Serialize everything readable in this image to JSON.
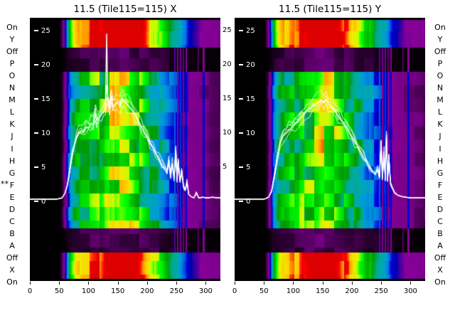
{
  "figure": {
    "background": "#ffffff",
    "row_marker": "**",
    "row_marker_row": "F",
    "trace_color": "#ffffff"
  },
  "chart_data": {
    "type": "heatmap",
    "colormap": "nipy_spectral",
    "x_range": [
      0,
      325
    ],
    "value_range": [
      0,
      25
    ],
    "x_ticks": [
      0,
      50,
      100,
      150,
      200,
      250,
      300
    ],
    "value_ticks": [
      25,
      20,
      15,
      10,
      5,
      0
    ],
    "gap_value_ticks": [
      25,
      20,
      15,
      10,
      5
    ],
    "row_labels": [
      "On",
      "Y",
      "Off",
      "P",
      "O",
      "N",
      "M",
      "L",
      "K",
      "J",
      "I",
      "H",
      "G",
      "F",
      "E",
      "D",
      "C",
      "B",
      "A",
      "Off",
      "X",
      "On"
    ],
    "bands": [
      {
        "name": "top-hot-band",
        "rows": [
          "On",
          "Y"
        ]
      },
      {
        "name": "off-gap-top",
        "rows": [
          "Off"
        ]
      },
      {
        "name": "central-region",
        "rows": [
          "P",
          "O",
          "N",
          "M",
          "L",
          "K",
          "J",
          "I",
          "H",
          "G",
          "F",
          "E",
          "D",
          "C",
          "B",
          "A"
        ]
      },
      {
        "name": "off-gap-bottom",
        "rows": [
          "Off"
        ]
      },
      {
        "name": "bottom-hot-band",
        "rows": [
          "X",
          "On"
        ]
      }
    ],
    "envelope": [
      [
        0,
        0
      ],
      [
        50,
        0
      ],
      [
        55,
        0.03
      ],
      [
        60,
        0.12
      ],
      [
        65,
        0.3
      ],
      [
        70,
        0.45
      ],
      [
        75,
        0.52
      ],
      [
        80,
        0.56
      ],
      [
        90,
        0.6
      ],
      [
        100,
        0.62
      ],
      [
        110,
        0.65
      ],
      [
        120,
        0.7
      ],
      [
        130,
        0.76
      ],
      [
        140,
        0.8
      ],
      [
        150,
        0.85
      ],
      [
        160,
        0.83
      ],
      [
        170,
        0.78
      ],
      [
        180,
        0.72
      ],
      [
        190,
        0.65
      ],
      [
        200,
        0.58
      ],
      [
        210,
        0.52
      ],
      [
        220,
        0.46
      ],
      [
        230,
        0.4
      ],
      [
        240,
        0.34
      ],
      [
        250,
        0.3
      ],
      [
        260,
        0.22
      ],
      [
        270,
        0.15
      ],
      [
        280,
        0.11
      ],
      [
        290,
        0.09
      ],
      [
        300,
        0.08
      ],
      [
        310,
        0.07
      ],
      [
        325,
        0.06
      ]
    ],
    "stripes": [
      {
        "x": 247,
        "t": 0.24
      },
      {
        "x": 252,
        "t": 0.1
      },
      {
        "x": 256,
        "t": 0.22
      },
      {
        "x": 261,
        "t": 0.08
      },
      {
        "x": 266,
        "t": 0.2
      },
      {
        "x": 287,
        "t": 0.07
      },
      {
        "x": 296,
        "t": 0.18
      }
    ],
    "panels": [
      {
        "title": "11.5 (Tile115=115) X",
        "trace": [
          [
            0,
            0.3
          ],
          [
            45,
            0.3
          ],
          [
            55,
            0.5
          ],
          [
            60,
            1.2
          ],
          [
            64,
            2.4
          ],
          [
            68,
            4.5
          ],
          [
            72,
            6.5
          ],
          [
            76,
            8.2
          ],
          [
            80,
            9.4
          ],
          [
            84,
            10.0
          ],
          [
            88,
            10.4
          ],
          [
            92,
            10.1
          ],
          [
            96,
            10.9
          ],
          [
            100,
            10.7
          ],
          [
            104,
            11.4
          ],
          [
            108,
            11.1
          ],
          [
            112,
            12.9
          ],
          [
            114,
            11.9
          ],
          [
            118,
            12.2
          ],
          [
            122,
            12.7
          ],
          [
            126,
            13.1
          ],
          [
            129,
            13.9
          ],
          [
            131,
            24.5
          ],
          [
            133,
            14.4
          ],
          [
            136,
            13.7
          ],
          [
            139,
            15.4
          ],
          [
            142,
            13.9
          ],
          [
            146,
            14.2
          ],
          [
            150,
            14.6
          ],
          [
            154,
            14.1
          ],
          [
            158,
            15.0
          ],
          [
            162,
            14.5
          ],
          [
            166,
            14.2
          ],
          [
            170,
            13.8
          ],
          [
            175,
            13.3
          ],
          [
            180,
            12.6
          ],
          [
            185,
            11.8
          ],
          [
            190,
            11.0
          ],
          [
            195,
            10.2
          ],
          [
            200,
            9.4
          ],
          [
            205,
            8.6
          ],
          [
            210,
            7.8
          ],
          [
            215,
            7.0
          ],
          [
            220,
            6.2
          ],
          [
            225,
            5.4
          ],
          [
            230,
            4.7
          ],
          [
            234,
            4.2
          ],
          [
            237,
            6.0
          ],
          [
            240,
            3.8
          ],
          [
            243,
            5.5
          ],
          [
            246,
            3.4
          ],
          [
            249,
            7.5
          ],
          [
            251,
            3.2
          ],
          [
            253,
            6.0
          ],
          [
            256,
            2.8
          ],
          [
            259,
            4.5
          ],
          [
            262,
            2.2
          ],
          [
            265,
            1.6
          ],
          [
            268,
            2.8
          ],
          [
            271,
            1.0
          ],
          [
            275,
            0.7
          ],
          [
            280,
            0.5
          ],
          [
            284,
            1.3
          ],
          [
            288,
            0.5
          ],
          [
            295,
            0.6
          ],
          [
            302,
            0.5
          ],
          [
            312,
            0.6
          ],
          [
            320,
            0.5
          ],
          [
            330,
            0.5
          ]
        ]
      },
      {
        "title": "11.5 (Tile115=115) Y",
        "trace": [
          [
            0,
            0.3
          ],
          [
            50,
            0.3
          ],
          [
            58,
            0.6
          ],
          [
            63,
            1.5
          ],
          [
            68,
            3.8
          ],
          [
            73,
            6.6
          ],
          [
            78,
            8.6
          ],
          [
            83,
            9.6
          ],
          [
            88,
            10.0
          ],
          [
            93,
            10.4
          ],
          [
            98,
            10.9
          ],
          [
            103,
            11.3
          ],
          [
            108,
            11.8
          ],
          [
            113,
            12.3
          ],
          [
            118,
            12.8
          ],
          [
            123,
            13.2
          ],
          [
            128,
            13.6
          ],
          [
            133,
            13.9
          ],
          [
            138,
            14.2
          ],
          [
            143,
            14.5
          ],
          [
            148,
            14.8
          ],
          [
            152,
            14.4
          ],
          [
            156,
            14.9
          ],
          [
            160,
            14.3
          ],
          [
            164,
            13.9
          ],
          [
            168,
            13.5
          ],
          [
            172,
            13.1
          ],
          [
            176,
            12.6
          ],
          [
            180,
            12.1
          ],
          [
            185,
            11.5
          ],
          [
            190,
            10.9
          ],
          [
            195,
            10.2
          ],
          [
            200,
            9.5
          ],
          [
            205,
            8.8
          ],
          [
            210,
            8.0
          ],
          [
            215,
            7.2
          ],
          [
            220,
            6.4
          ],
          [
            225,
            5.7
          ],
          [
            230,
            5.0
          ],
          [
            235,
            4.4
          ],
          [
            240,
            3.9
          ],
          [
            244,
            4.8
          ],
          [
            247,
            3.6
          ],
          [
            250,
            8.5
          ],
          [
            252,
            3.4
          ],
          [
            255,
            7.0
          ],
          [
            257,
            3.1
          ],
          [
            259,
            9.8
          ],
          [
            261,
            2.9
          ],
          [
            263,
            6.5
          ],
          [
            266,
            2.5
          ],
          [
            269,
            1.9
          ],
          [
            273,
            1.3
          ],
          [
            278,
            0.9
          ],
          [
            285,
            0.7
          ],
          [
            292,
            0.6
          ],
          [
            300,
            0.5
          ],
          [
            310,
            0.5
          ],
          [
            320,
            0.5
          ],
          [
            330,
            0.5
          ]
        ]
      }
    ]
  }
}
